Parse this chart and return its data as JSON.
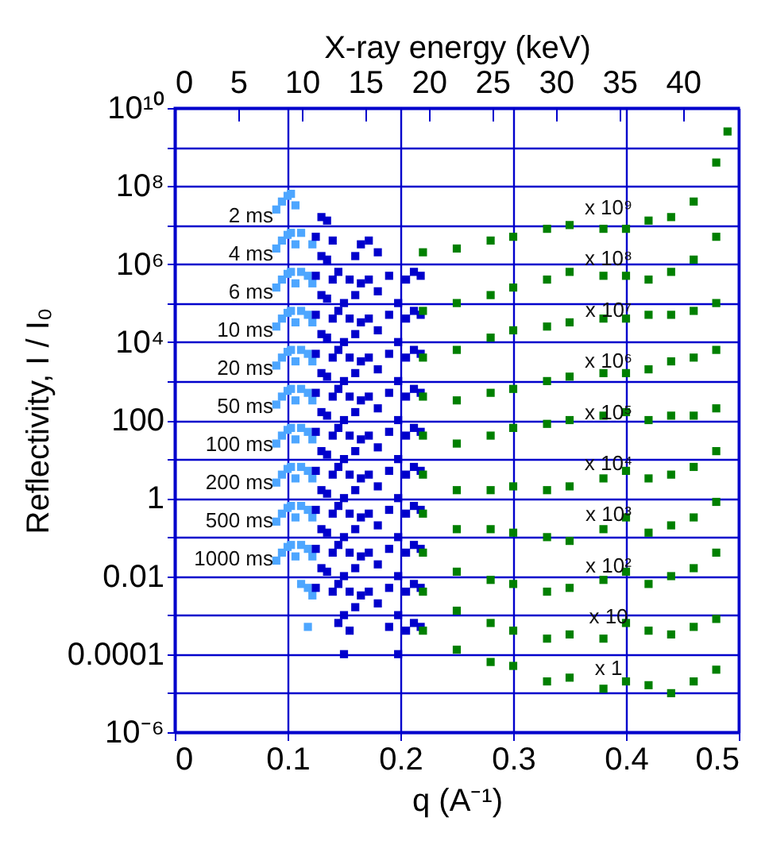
{
  "chart_data": {
    "type": "scatter",
    "xlabel": "q (A⁻¹)",
    "ylabel": "Reflectivity, I / I₀",
    "x2label": "X-ray energy (keV)",
    "xlim": [
      0,
      0.5
    ],
    "xticks": [
      0,
      0.1,
      0.2,
      0.3,
      0.4,
      0.5
    ],
    "x2lim": [
      0,
      44.4
    ],
    "x2ticks": [
      0,
      5,
      10,
      15,
      20,
      25,
      30,
      35,
      40
    ],
    "ylim": [
      1e-06,
      10000000000.0
    ],
    "yticks": [
      {
        "value": 1e-06,
        "label": "10⁻⁶"
      },
      {
        "value": 1e-05,
        "label": null
      },
      {
        "value": 0.0001,
        "label": "0.0001"
      },
      {
        "value": 0.001,
        "label": null
      },
      {
        "value": 0.01,
        "label": "0.01"
      },
      {
        "value": 0.1,
        "label": null
      },
      {
        "value": 1,
        "label": "1"
      },
      {
        "value": 10,
        "label": null
      },
      {
        "value": 100,
        "label": "100"
      },
      {
        "value": 1000,
        "label": null
      },
      {
        "value": 10000,
        "label": "10⁴"
      },
      {
        "value": 100000,
        "label": null
      },
      {
        "value": 1000000,
        "label": "10⁶"
      },
      {
        "value": 10000000,
        "label": null
      },
      {
        "value": 100000000,
        "label": "10⁸"
      },
      {
        "value": 1000000000,
        "label": null
      },
      {
        "value": 10000000000,
        "label": "10¹⁰"
      }
    ],
    "log": "y",
    "grid": true,
    "marker": "square",
    "series": [
      {
        "color": "#4da6ff",
        "x": [
          0.09,
          0.095,
          0.1,
          0.103,
          0.107,
          0.112,
          0.118,
          0.122,
          0.09,
          0.095,
          0.1,
          0.103,
          0.107,
          0.112,
          0.118,
          0.122,
          0.09,
          0.095,
          0.1,
          0.103,
          0.107,
          0.112,
          0.118,
          0.122,
          0.09,
          0.095,
          0.1,
          0.103,
          0.107,
          0.112,
          0.118,
          0.122,
          0.09,
          0.095,
          0.1,
          0.103,
          0.107,
          0.112,
          0.118,
          0.122,
          0.09,
          0.095,
          0.1,
          0.103,
          0.107,
          0.112,
          0.118,
          0.122,
          0.09,
          0.095,
          0.1,
          0.103,
          0.107,
          0.112,
          0.118,
          0.122,
          0.09,
          0.095,
          0.1,
          0.103,
          0.107,
          0.112,
          0.118,
          0.122,
          0.09,
          0.095,
          0.1,
          0.103,
          0.107,
          0.112,
          0.118,
          0.122,
          0.09,
          0.095,
          0.1,
          0.103,
          0.107,
          0.112,
          0.118,
          0.122
        ],
        "values": [
          0.025,
          0.04,
          0.056,
          0.063,
          0.032,
          0.0063,
          0.0005,
          0.0032,
          0.25,
          0.4,
          0.56,
          0.63,
          0.32,
          0.063,
          0.005,
          0.032,
          2.5,
          4,
          5.6,
          6.3,
          3.2,
          0.63,
          0.05,
          0.32,
          25,
          40,
          56,
          63,
          32,
          6.3,
          0.5,
          3.2,
          250,
          400,
          560,
          630,
          320,
          63,
          5,
          32,
          2500.0,
          4000.0,
          5600.0,
          6300.0,
          3200.0,
          630,
          50,
          320,
          25000.0,
          40000.0,
          56000.0,
          63000.0,
          32000.0,
          6300.0,
          500,
          3200.0,
          250000.0,
          400000.0,
          560000.0,
          630000.0,
          320000.0,
          63000.0,
          5000.0,
          32000.0,
          2500000.0,
          4000000.0,
          5600000.0,
          6300000.0,
          3200000.0,
          630000.0,
          50000.0,
          320000.0,
          25000000.0,
          40000000.0,
          56000000.0,
          63000000.0,
          32000000.0,
          6300000.0,
          500000.0,
          3200000.0
        ]
      },
      {
        "color": "#0000cc",
        "x": [
          0.125,
          0.13,
          0.135,
          0.14,
          0.145,
          0.15,
          0.155,
          0.16,
          0.165,
          0.172,
          0.18,
          0.19,
          0.198,
          0.205,
          0.212,
          0.218,
          0.125,
          0.13,
          0.135,
          0.14,
          0.145,
          0.15,
          0.155,
          0.16,
          0.165,
          0.172,
          0.18,
          0.19,
          0.198,
          0.205,
          0.212,
          0.218,
          0.125,
          0.13,
          0.135,
          0.14,
          0.145,
          0.15,
          0.155,
          0.16,
          0.165,
          0.172,
          0.18,
          0.19,
          0.198,
          0.205,
          0.212,
          0.218,
          0.125,
          0.13,
          0.135,
          0.14,
          0.145,
          0.15,
          0.155,
          0.16,
          0.165,
          0.172,
          0.18,
          0.19,
          0.198,
          0.205,
          0.212,
          0.218,
          0.125,
          0.13,
          0.135,
          0.14,
          0.145,
          0.15,
          0.155,
          0.16,
          0.165,
          0.172,
          0.18,
          0.19,
          0.198,
          0.205,
          0.212,
          0.218,
          0.125,
          0.13,
          0.135,
          0.14,
          0.145,
          0.15,
          0.155,
          0.16,
          0.165,
          0.172,
          0.18,
          0.19,
          0.198,
          0.205,
          0.212,
          0.218,
          0.125,
          0.13,
          0.135,
          0.14,
          0.145,
          0.15,
          0.155,
          0.16,
          0.165,
          0.172,
          0.18,
          0.19,
          0.198,
          0.205,
          0.212,
          0.218,
          0.125,
          0.13,
          0.135,
          0.14,
          0.145,
          0.15,
          0.155,
          0.16,
          0.165,
          0.172,
          0.18,
          0.19,
          0.198,
          0.205,
          0.212,
          0.218,
          0.125,
          0.13,
          0.135,
          0.14,
          0.145,
          0.15,
          0.155,
          0.16,
          0.165,
          0.172,
          0.18,
          0.19,
          0.198,
          0.205,
          0.212,
          0.218,
          0.125,
          0.13,
          0.135,
          0.14,
          0.145,
          0.15,
          0.155,
          0.16,
          0.165,
          0.172,
          0.18,
          0.19,
          0.198,
          0.205,
          0.212,
          0.218
        ],
        "values": [
          0.005,
          0.016,
          0.013,
          0.004,
          0.00063,
          0.0001,
          0.0004,
          0.0016,
          0.0032,
          0.004,
          0.002,
          0.0005,
          0.0001,
          0.0004,
          0.00063,
          0.0005,
          0.05,
          0.16,
          0.13,
          0.04,
          0.0063,
          0.001,
          0.004,
          0.016,
          0.032,
          0.04,
          0.02,
          0.005,
          0.001,
          0.004,
          0.0063,
          0.005,
          0.5,
          1.6,
          1.3,
          0.4,
          0.063,
          0.01,
          0.04,
          0.16,
          0.32,
          0.4,
          0.2,
          0.05,
          0.01,
          0.04,
          0.063,
          0.05,
          5,
          16,
          13,
          4,
          0.63,
          0.1,
          0.4,
          1.6,
          3.2,
          4,
          2,
          0.5,
          0.1,
          0.4,
          0.63,
          0.5,
          50,
          160,
          130,
          40,
          6.3,
          1,
          4,
          16,
          32,
          40,
          20,
          5,
          1,
          4,
          6.3,
          5,
          500,
          1600,
          1300,
          400,
          63,
          10,
          40,
          160,
          320,
          400,
          200,
          50,
          10,
          40,
          63,
          50,
          5000.0,
          16000.0,
          13000.0,
          4000.0,
          630,
          100,
          400,
          1600.0,
          3200.0,
          4000.0,
          2000.0,
          500,
          100,
          400,
          630,
          500,
          50000.0,
          160000.0,
          130000.0,
          40000.0,
          6300.0,
          1000.0,
          4000.0,
          16000.0,
          32000.0,
          40000.0,
          20000.0,
          5000.0,
          1000.0,
          4000.0,
          6300.0,
          5000.0,
          500000.0,
          1600000.0,
          1300000.0,
          400000.0,
          63000.0,
          10000.0,
          40000.0,
          160000.0,
          320000.0,
          400000.0,
          200000.0,
          50000.0,
          10000.0,
          40000.0,
          63000.0,
          50000.0,
          5000000.0,
          16000000.0,
          13000000.0,
          4000000.0,
          630000.0,
          100000.0,
          400000.0,
          1600000.0,
          3200000.0,
          4000000.0,
          2000000.0,
          500000.0,
          100000.0,
          400000.0,
          630000.0,
          500000.0
        ]
      },
      {
        "color": "#008000",
        "x": [
          0.22,
          0.25,
          0.28,
          0.3,
          0.33,
          0.35,
          0.38,
          0.4,
          0.42,
          0.44,
          0.46,
          0.48,
          0.22,
          0.25,
          0.28,
          0.3,
          0.33,
          0.35,
          0.38,
          0.4,
          0.42,
          0.44,
          0.46,
          0.48,
          0.22,
          0.25,
          0.28,
          0.3,
          0.33,
          0.35,
          0.38,
          0.4,
          0.42,
          0.44,
          0.46,
          0.48,
          0.22,
          0.25,
          0.28,
          0.3,
          0.33,
          0.35,
          0.38,
          0.4,
          0.42,
          0.44,
          0.46,
          0.48,
          0.22,
          0.25,
          0.28,
          0.3,
          0.33,
          0.35,
          0.38,
          0.4,
          0.42,
          0.44,
          0.46,
          0.48,
          0.22,
          0.25,
          0.28,
          0.3,
          0.33,
          0.35,
          0.38,
          0.4,
          0.42,
          0.44,
          0.46,
          0.48,
          0.22,
          0.25,
          0.28,
          0.3,
          0.33,
          0.35,
          0.38,
          0.4,
          0.42,
          0.44,
          0.46,
          0.48,
          0.22,
          0.25,
          0.28,
          0.3,
          0.33,
          0.35,
          0.38,
          0.4,
          0.42,
          0.44,
          0.46,
          0.48,
          0.22,
          0.25,
          0.28,
          0.3,
          0.33,
          0.35,
          0.38,
          0.4,
          0.42,
          0.44,
          0.46,
          0.48,
          0.22,
          0.25,
          0.28,
          0.3,
          0.33,
          0.35,
          0.38,
          0.4,
          0.42,
          0.44,
          0.46,
          0.48,
          0.49
        ],
        "values": [
          0.0004,
          0.00013,
          6.3e-05,
          5e-05,
          2e-05,
          2.5e-05,
          1.3e-05,
          2e-05,
          1.6e-05,
          1e-05,
          2e-05,
          4e-05,
          0.004,
          0.0013,
          0.00063,
          0.0004,
          0.00025,
          0.00032,
          0.00025,
          0.00063,
          0.0004,
          0.00032,
          0.0005,
          0.0008,
          0.04,
          0.013,
          0.008,
          0.0063,
          0.004,
          0.005,
          0.008,
          0.013,
          0.0063,
          0.01,
          0.016,
          0.04,
          0.4,
          0.16,
          0.16,
          0.13,
          0.1,
          0.08,
          0.16,
          0.32,
          0.13,
          0.2,
          0.32,
          0.8,
          4,
          1.6,
          1.6,
          2,
          1.6,
          2,
          3.2,
          5,
          3.2,
          4,
          6.3,
          16,
          40,
          25,
          40,
          63,
          80,
          100,
          130,
          160,
          100,
          130,
          130,
          200,
          400,
          320,
          500,
          630,
          1000,
          1300,
          1600,
          1600,
          2000,
          3200,
          4000,
          6300,
          4000,
          6300,
          13000,
          20000,
          25000,
          32000,
          40000,
          40000,
          50000,
          50000,
          63000,
          100000,
          63000.0,
          100000.0,
          160000.0,
          250000.0,
          400000.0,
          630000.0,
          500000.0,
          500000.0,
          400000.0,
          630000.0,
          1300000.0,
          5000000.0,
          2000000.0,
          2500000.0,
          4000000.0,
          5000000.0,
          8000000.0,
          10000000.0,
          8000000.0,
          8000000.0,
          13000000.0,
          16000000.0,
          40000000.0,
          400000000.0,
          2500000000.0
        ]
      }
    ],
    "annotations": [
      "2 ms",
      "4 ms",
      "6 ms",
      "10 ms",
      "20 ms",
      "50 ms",
      "100 ms",
      "200 ms",
      "500 ms",
      "1000 ms",
      "x 10⁹",
      "x 10⁸",
      "x 10⁷",
      "x 10⁶",
      "x 10⁵",
      "x 10⁴",
      "x 10³",
      "x 10²",
      "x 10",
      "x 1"
    ]
  }
}
